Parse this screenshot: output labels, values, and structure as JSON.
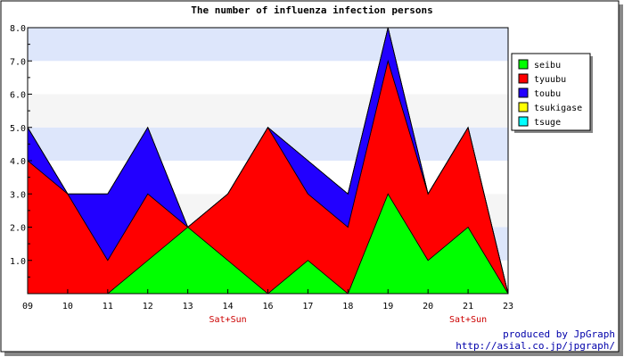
{
  "chart_data": {
    "type": "area",
    "title": "The number of influenza infection persons",
    "stacked": true,
    "categories": [
      "09",
      "10",
      "11",
      "12",
      "13",
      "14",
      "16",
      "17",
      "18",
      "19",
      "20",
      "21",
      "23"
    ],
    "weekend_labels": [
      "",
      "",
      "",
      "",
      "",
      "Sat+Sun",
      "",
      "",
      "",
      "",
      "",
      "Sat+Sun",
      ""
    ],
    "series": [
      {
        "name": "seibu",
        "color": "#00ff00",
        "values": [
          0,
          0,
          0,
          1,
          2,
          1,
          0,
          1,
          0,
          3,
          1,
          2,
          0
        ]
      },
      {
        "name": "tyuubu",
        "color": "#ff0000",
        "values": [
          4,
          3,
          1,
          2,
          0,
          2,
          5,
          2,
          2,
          4,
          2,
          3,
          0
        ]
      },
      {
        "name": "toubu",
        "color": "#2200ff",
        "values": [
          1,
          0,
          2,
          2,
          0,
          0,
          0,
          1,
          1,
          1,
          0,
          0,
          0
        ]
      },
      {
        "name": "tsukigase",
        "color": "#ffff00",
        "values": [
          0,
          0,
          0,
          0,
          0,
          0,
          0,
          0,
          0,
          0,
          0,
          0,
          0
        ]
      },
      {
        "name": "tsuge",
        "color": "#00ffff",
        "values": [
          0,
          0,
          0,
          0,
          0,
          0,
          0,
          0,
          0,
          0,
          0,
          0,
          0
        ]
      }
    ],
    "y_ticks": [
      "1.0",
      "2.0",
      "3.0",
      "4.0",
      "5.0",
      "6.0",
      "7.0",
      "8.0"
    ],
    "ylim": [
      0,
      8
    ],
    "band_colors": [
      "#ffffff",
      "#dde6fb",
      "#f5f5f5"
    ],
    "weekend_color": "#cc0000",
    "legend_position": "top-right"
  },
  "credits": {
    "line1": "produced by JpGraph",
    "line2": "http://asial.co.jp/jpgraph/",
    "color": "#0000aa"
  }
}
